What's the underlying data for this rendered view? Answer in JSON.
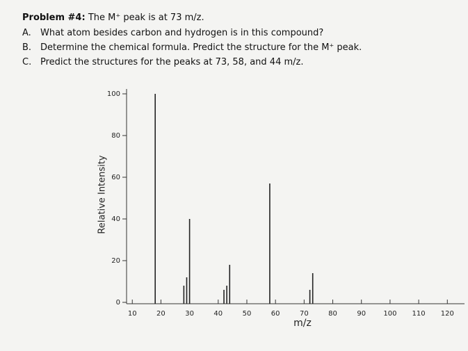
{
  "problem": {
    "heading": "Problem #4:",
    "statement": "The M⁺ peak is at 73 m/z.",
    "items": [
      {
        "label": "A.",
        "text": "What atom besides carbon and hydrogen is in this compound?"
      },
      {
        "label": "B.",
        "text": "Determine the chemical formula. Predict the structure for the M⁺ peak."
      },
      {
        "label": "C.",
        "text": "Predict the structures for the peaks at 73, 58, and 44 m/z."
      }
    ]
  },
  "chart_data": {
    "type": "bar",
    "x_label": "m/z",
    "y_label": "Relative Intensity",
    "x": [
      18,
      28,
      29,
      30,
      42,
      43,
      44,
      58,
      72,
      73
    ],
    "values": [
      100,
      8,
      12,
      40,
      6,
      8,
      18,
      57,
      6,
      14
    ],
    "color": "#222222",
    "xlim": [
      8,
      126
    ],
    "xticks": [
      10,
      20,
      30,
      40,
      50,
      60,
      70,
      80,
      90,
      100,
      110,
      120
    ],
    "ylim": [
      0,
      100
    ],
    "yticks": [
      0,
      20,
      40,
      60,
      80,
      100
    ]
  }
}
